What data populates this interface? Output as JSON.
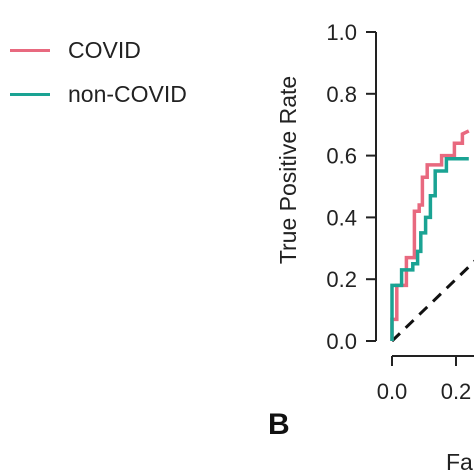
{
  "chart_data": {
    "type": "line",
    "xlabel": "Fa",
    "ylabel": "True Positive Rate",
    "xlim": [
      0,
      1
    ],
    "ylim": [
      0,
      1
    ],
    "y_ticks": [
      "0.0",
      "0.2",
      "0.4",
      "0.6",
      "0.8",
      "1.0"
    ],
    "x_ticks": [
      "0.0",
      "0.2"
    ],
    "diagonal": {
      "x": [
        0,
        1
      ],
      "y": [
        0,
        1
      ],
      "style": "dashed"
    },
    "series": [
      {
        "name": "COVID",
        "color": "#e8697f",
        "x": [
          0,
          0,
          0.015,
          0.015,
          0.045,
          0.045,
          0.07,
          0.07,
          0.085,
          0.085,
          0.095,
          0.095,
          0.11,
          0.11,
          0.125,
          0.125,
          0.155,
          0.155,
          0.175,
          0.175,
          0.195,
          0.195,
          0.22,
          0.22,
          0.24
        ],
        "y": [
          0,
          0.07,
          0.07,
          0.18,
          0.18,
          0.27,
          0.27,
          0.42,
          0.42,
          0.44,
          0.44,
          0.53,
          0.53,
          0.57,
          0.57,
          0.57,
          0.57,
          0.6,
          0.6,
          0.6,
          0.6,
          0.64,
          0.64,
          0.67,
          0.68
        ]
      },
      {
        "name": "non-COVID",
        "color": "#1aa393",
        "x": [
          0,
          0,
          0.03,
          0.03,
          0.065,
          0.065,
          0.08,
          0.08,
          0.09,
          0.09,
          0.105,
          0.105,
          0.12,
          0.12,
          0.135,
          0.135,
          0.17,
          0.17,
          0.24
        ],
        "y": [
          0,
          0.18,
          0.18,
          0.23,
          0.23,
          0.25,
          0.25,
          0.29,
          0.29,
          0.35,
          0.35,
          0.4,
          0.4,
          0.47,
          0.47,
          0.55,
          0.55,
          0.59,
          0.59
        ]
      }
    ]
  },
  "panel_label": "B"
}
